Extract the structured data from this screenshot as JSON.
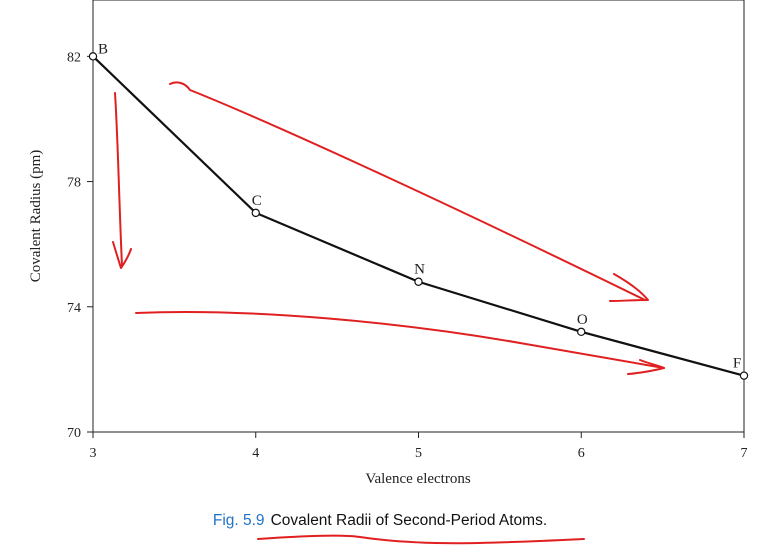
{
  "chart_data": {
    "type": "line",
    "x": [
      3,
      4,
      5,
      6,
      7
    ],
    "values": [
      82,
      77,
      74.8,
      73.2,
      71.8
    ],
    "point_labels": [
      "B",
      "C",
      "N",
      "O",
      "F"
    ],
    "xlabel": "Valence electrons",
    "ylabel": "Covalent Radius (pm)",
    "xlim": [
      3,
      7
    ],
    "ylim": [
      70,
      83.8
    ],
    "xticks": [
      3,
      4,
      5,
      6,
      7
    ],
    "yticks": [
      70,
      74,
      78,
      82
    ],
    "grid": false,
    "line_color": "#111111",
    "annotation_color": "#e02020"
  },
  "caption": {
    "number": "Fig. 5.9",
    "title": "Covalent Radii of Second-Period Atoms."
  }
}
